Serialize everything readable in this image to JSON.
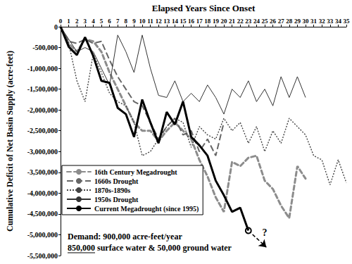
{
  "chart_data": {
    "type": "line",
    "x_label": "Elapsed Years Since Onset",
    "y_label": "Cumulative Deficit of Net Basin Supply (acre-feet)",
    "x": [
      0,
      1,
      2,
      3,
      4,
      5,
      6,
      7,
      8,
      9,
      10,
      11,
      12,
      13,
      14,
      15,
      16,
      17,
      18,
      19,
      20,
      21,
      22,
      23,
      24,
      25,
      26,
      27,
      28,
      29,
      30,
      31,
      32,
      33,
      34,
      35
    ],
    "xlim": [
      0,
      35
    ],
    "xticks": [
      0,
      1,
      2,
      3,
      4,
      5,
      6,
      7,
      8,
      9,
      10,
      11,
      12,
      13,
      14,
      15,
      16,
      17,
      18,
      19,
      20,
      21,
      22,
      23,
      24,
      25,
      26,
      27,
      28,
      29,
      30,
      31,
      32,
      33,
      34,
      35
    ],
    "ylim": [
      -5500000,
      0
    ],
    "yticks": [
      0,
      {
        "value": -500000,
        "label": "-500,000"
      },
      {
        "value": -1000000,
        "label": "-1,000,000"
      },
      {
        "value": -1500000,
        "label": "-1,500,000"
      },
      {
        "value": -2000000,
        "label": "-2,000,000"
      },
      {
        "value": -2500000,
        "label": "-2,500,000"
      },
      {
        "value": -3000000,
        "label": "-3,000,000"
      },
      {
        "value": -3500000,
        "label": "-3,500,000"
      },
      {
        "value": -4000000,
        "label": "-4,000,000"
      },
      {
        "value": -4500000,
        "label": "-4,500,000"
      },
      {
        "value": -5000000,
        "label": "-5,000,000"
      },
      {
        "value": -5500000,
        "label": "-5,500,000"
      }
    ],
    "grid": false,
    "legend": "lower left",
    "series": [
      {
        "name": "16th Century Megadrought",
        "color": "#8c8c8c",
        "line_style": "dashed",
        "values": [
          0,
          -400000,
          -600000,
          -300000,
          -350000,
          -600000,
          -1100000,
          -1500000,
          -1900000,
          -2300000,
          -2500000,
          -2500000,
          -2750000,
          -2500000,
          -2300000,
          -2500000,
          -2700000,
          -3200000,
          -3600000,
          -4100000,
          -4450000,
          -3250000,
          -3350000,
          -3150000,
          -3100000,
          -3700000,
          -3900000,
          -4300000,
          -4600000,
          -3350000,
          -3650000,
          null,
          null,
          null,
          null,
          null
        ]
      },
      {
        "name": "1660s Drought",
        "color": "#666666",
        "line_style": "dashed",
        "values": [
          0,
          -350000,
          -400000,
          -300000,
          -400000,
          -350000,
          -800000,
          -1200000,
          -1500000,
          -1800000,
          -1900000,
          -2300000,
          -2700000,
          -2400000,
          -2200000,
          -2600000,
          -2500000,
          -3000000,
          -2700000,
          -3100000,
          -2300000,
          null,
          null,
          null,
          null,
          null,
          null,
          null,
          null,
          null,
          null,
          null,
          null,
          null,
          null,
          null
        ]
      },
      {
        "name": "1870s-1890s",
        "color": "#444444",
        "line_style": "dotted",
        "values": [
          0,
          -400000,
          -1300000,
          -1800000,
          -650000,
          -1100000,
          -1600000,
          -1800000,
          -1900000,
          -2300000,
          -3100000,
          -3000000,
          -2700000,
          -2400000,
          -2200000,
          -2300000,
          -2900000,
          -2400000,
          -2600000,
          -2700000,
          -2200000,
          -2500000,
          -2300000,
          -2800000,
          -2400000,
          -3000000,
          -2500000,
          -2800000,
          -2200000,
          -2400000,
          -2600000,
          -3100000,
          -3200000,
          -3800000,
          -3200000,
          -3750000
        ]
      },
      {
        "name": "1950s Drought",
        "color": "#333333",
        "line_style": "solid",
        "values": [
          0,
          -300000,
          -600000,
          -500000,
          -600000,
          -1000000,
          -1400000,
          -200000,
          -600000,
          -1100000,
          -200000,
          -1000000,
          -1650000,
          -1700000,
          -1300000,
          -1800000,
          -1600000,
          -1800000,
          -1400000,
          -1700000,
          -2100000,
          -1500000,
          -1700000,
          -1300000,
          -1800000,
          -1500000,
          -1900000,
          -1200000,
          -1700000,
          -1200000,
          -1700000,
          null,
          null,
          null,
          null,
          null
        ]
      },
      {
        "name": "Current Megadrought (since 1995)",
        "color": "#000000",
        "line_style": "solid",
        "values": [
          0,
          -480000,
          -680000,
          -250000,
          -700000,
          -1300000,
          -1350000,
          -1950000,
          -2100000,
          -2650000,
          -1750000,
          -2300000,
          -2800000,
          -2050000,
          -2350000,
          -1800000,
          -2650000,
          -2850000,
          -3100000,
          -3700000,
          -4050000,
          -4450000,
          -4350000,
          -4900000,
          null,
          null,
          null,
          null,
          null,
          null,
          null,
          null,
          null,
          null,
          null,
          null
        ]
      }
    ],
    "projection": {
      "x": [
        23,
        25.2
      ],
      "values": [
        -4900000,
        -5300000
      ],
      "label": "?",
      "label_x": 25,
      "label_y": -4950000
    },
    "note": {
      "lines": [
        "Demand: 900,000 acre-feet/year",
        "850,000 surface water & 50,000 ground water"
      ],
      "underline": "850,000"
    }
  }
}
